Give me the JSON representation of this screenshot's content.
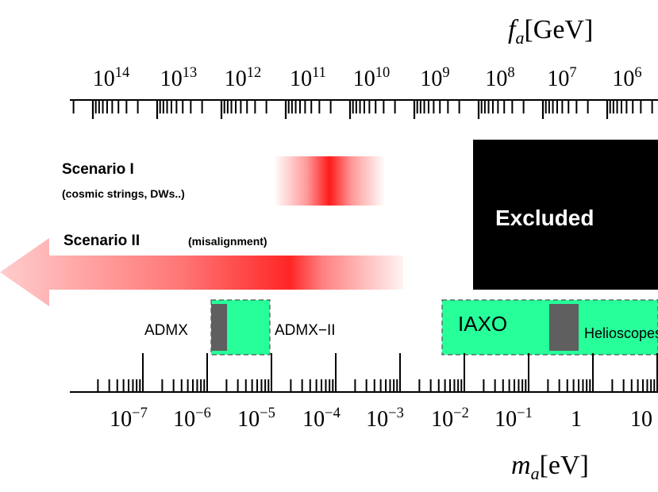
{
  "top_axis": {
    "label_main": "f",
    "label_sub": "a",
    "label_unit": "[GeV]",
    "ticks": [
      {
        "base": "10",
        "exp": "14"
      },
      {
        "base": "10",
        "exp": "13"
      },
      {
        "base": "10",
        "exp": "12"
      },
      {
        "base": "10",
        "exp": "11"
      },
      {
        "base": "10",
        "exp": "10"
      },
      {
        "base": "10",
        "exp": "9"
      },
      {
        "base": "10",
        "exp": "8"
      },
      {
        "base": "10",
        "exp": "7"
      },
      {
        "base": "10",
        "exp": "6"
      }
    ]
  },
  "bottom_axis": {
    "label_main": "m",
    "label_sub": "a",
    "label_unit": "[eV]",
    "ticks": [
      {
        "base": "10",
        "exp": "−7"
      },
      {
        "base": "10",
        "exp": "−6"
      },
      {
        "base": "10",
        "exp": "−5"
      },
      {
        "base": "10",
        "exp": "−4"
      },
      {
        "base": "10",
        "exp": "−3"
      },
      {
        "base": "10",
        "exp": "−2"
      },
      {
        "base": "10",
        "exp": "−1"
      },
      {
        "base": "1",
        "exp": ""
      },
      {
        "base": "10",
        "exp": ""
      }
    ]
  },
  "scenario1": {
    "title": "Scenario I",
    "subtitle": "(cosmic strings, DWs..)"
  },
  "scenario2": {
    "title": "Scenario II",
    "subtitle": "(misalignment)"
  },
  "excluded": {
    "label": "Excluded"
  },
  "experiments": {
    "admx": "ADMX",
    "admx2": "ADMX−II",
    "iaxo": "IAXO",
    "helioscopes": "Helioscopes"
  },
  "colors": {
    "red": "#ff1a1a",
    "green": "#26ff9a",
    "gray": "#5f5f5f",
    "black": "#000000"
  }
}
